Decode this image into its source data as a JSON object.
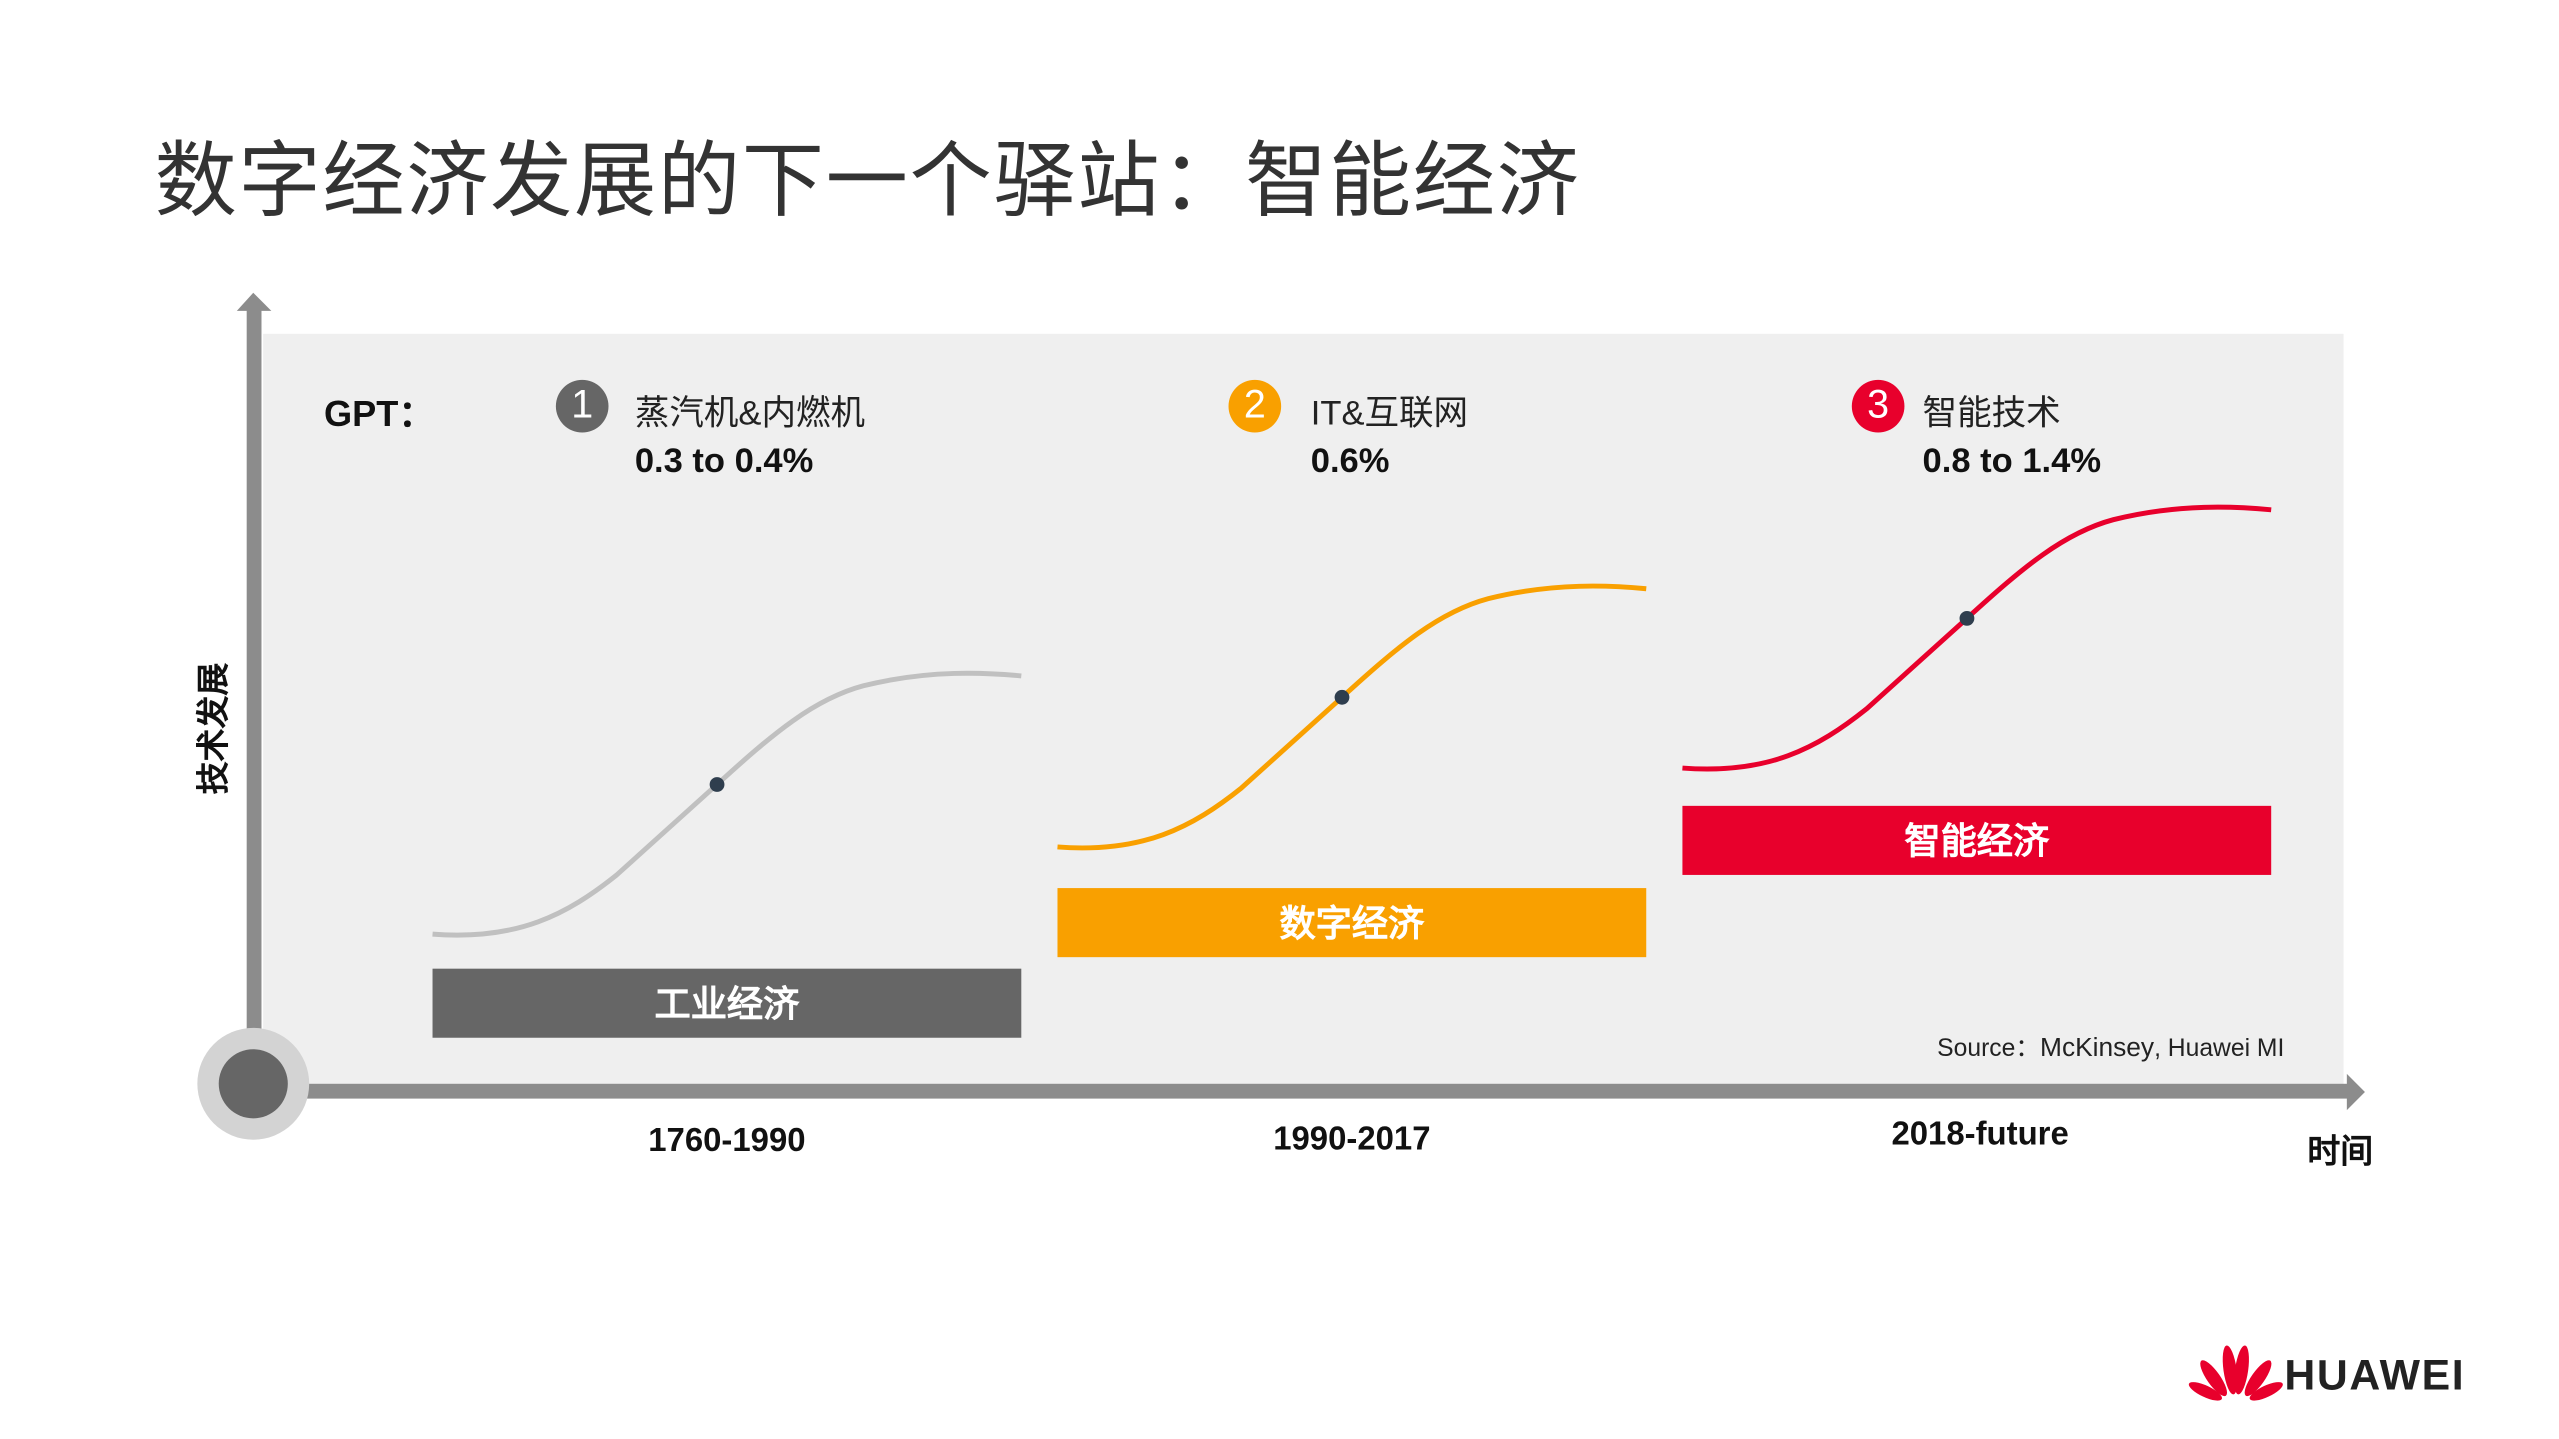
{
  "title": "数字经济发展的下一个驿站：智能经济",
  "axes": {
    "y_label": "技术发展",
    "x_label": "时间"
  },
  "gpt_label": "GPT：",
  "stages": [
    {
      "number": "1",
      "technology": "蒸汽机&内燃机",
      "gpt_share": "0.3 to 0.4%",
      "economy": "工业经济",
      "period": "1760-1990",
      "color": "#666666"
    },
    {
      "number": "2",
      "technology": "IT&互联网",
      "gpt_share": "0.6%",
      "economy": "数字经济",
      "period": "1990-2017",
      "color": "#F9A000"
    },
    {
      "number": "3",
      "technology": "智能技术",
      "gpt_share": "0.8 to 1.4%",
      "economy": "智能经济",
      "period": "2018-future",
      "color": "#E8002C"
    }
  ],
  "source": {
    "prefix": "Source：",
    "main": "McKinsey",
    "rest": ", Huawei MI"
  },
  "logo": {
    "text": "HUAWEI",
    "color": "#E8002C"
  },
  "curve_colors": [
    "#C0C0C0",
    "#F9A000",
    "#E8002C"
  ]
}
